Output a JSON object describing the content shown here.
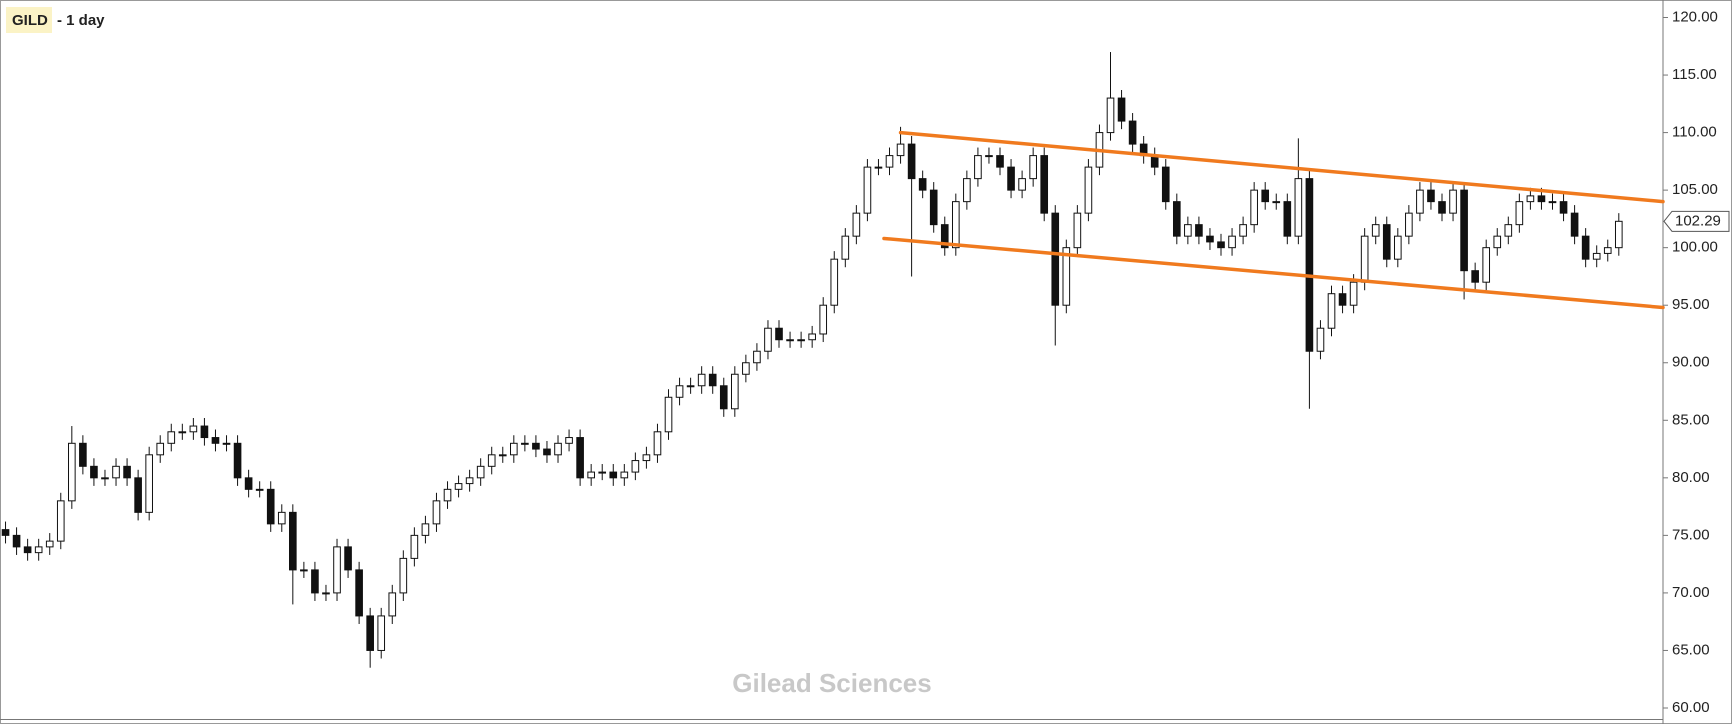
{
  "chart_data": {
    "type": "candlestick",
    "title": "GILD",
    "subtitle": "- 1 day",
    "watermark": "Gilead Sciences",
    "ylim": [
      59,
      121
    ],
    "yticks": [
      {
        "value": 60,
        "label": "60.00"
      },
      {
        "value": 65,
        "label": "65.00"
      },
      {
        "value": 70,
        "label": "70.00"
      },
      {
        "value": 75,
        "label": "75.00"
      },
      {
        "value": 80,
        "label": "80.00"
      },
      {
        "value": 85,
        "label": "85.00"
      },
      {
        "value": 90,
        "label": "90.00"
      },
      {
        "value": 95,
        "label": "95.00"
      },
      {
        "value": 100,
        "label": "100.00"
      },
      {
        "value": 105,
        "label": "105.00"
      },
      {
        "value": 110,
        "label": "110.00"
      },
      {
        "value": 115,
        "label": "115.00"
      },
      {
        "value": 120,
        "label": "120.00"
      }
    ],
    "last_price": 102.29,
    "up_color": "#ffffff",
    "down_color": "#111111",
    "open": [
      75.5,
      75,
      74,
      73.5,
      74,
      74.5,
      78,
      83,
      81,
      80,
      80,
      81,
      80,
      77,
      82,
      83,
      84,
      84,
      84.5,
      83.5,
      83,
      83,
      80,
      79,
      79,
      76,
      77,
      72,
      72,
      70,
      70,
      74,
      72,
      68,
      65,
      68,
      70,
      73,
      75,
      76,
      78,
      79,
      79.5,
      80,
      81,
      82,
      82,
      83,
      83,
      82.5,
      82,
      83,
      83.5,
      80,
      80.5,
      80.5,
      80,
      80.5,
      81.5,
      82,
      84,
      87,
      88,
      88,
      89,
      88,
      86,
      89,
      90,
      91,
      93,
      92,
      92,
      92,
      92.5,
      95,
      99,
      101,
      103,
      107,
      107,
      108,
      109,
      106,
      105,
      102,
      100,
      104,
      106,
      108,
      108,
      107,
      105,
      106,
      108,
      103,
      95,
      100,
      103,
      107,
      110,
      113,
      111,
      109,
      108,
      107,
      104,
      101,
      102,
      101,
      100.5,
      100,
      101,
      102,
      105,
      104,
      104,
      101,
      106,
      91,
      93,
      96,
      95,
      97,
      101,
      102,
      99,
      101,
      103,
      105,
      104,
      103,
      105,
      98,
      97,
      100,
      101,
      102,
      104,
      104.5,
      104,
      104,
      103,
      101,
      99,
      99.5,
      100
    ],
    "high": [
      76.2,
      75.7,
      74.7,
      74.7,
      75.2,
      78.7,
      84.5,
      83.7,
      81.7,
      80.7,
      81.7,
      81.7,
      80.7,
      82.7,
      83.7,
      84.7,
      84.7,
      85.2,
      85.2,
      84.2,
      83.7,
      83.7,
      80.7,
      79.7,
      79.7,
      77.7,
      77.7,
      72.7,
      72.7,
      70.7,
      74.7,
      74.7,
      72.7,
      68.7,
      68.7,
      70.7,
      73.7,
      75.7,
      76.7,
      78.7,
      79.7,
      80.2,
      80.7,
      81.7,
      82.7,
      82.7,
      83.7,
      83.7,
      83.7,
      83.2,
      83.7,
      84.2,
      84.2,
      81.2,
      81.2,
      81.2,
      81.2,
      82.2,
      82.7,
      84.7,
      87.7,
      88.7,
      88.7,
      89.7,
      89.7,
      88.7,
      89.7,
      90.7,
      91.7,
      93.7,
      93.7,
      92.7,
      92.7,
      93.2,
      95.7,
      99.7,
      101.7,
      103.7,
      107.7,
      107.7,
      108.7,
      110.5,
      109.7,
      106.7,
      105.7,
      102.7,
      104.7,
      106.7,
      108.7,
      108.7,
      108.7,
      107.7,
      106.7,
      108.7,
      108.7,
      103.7,
      100.7,
      103.7,
      107.7,
      110.7,
      117,
      113.7,
      111.7,
      109.7,
      108.7,
      107.7,
      104.7,
      102.7,
      102.7,
      101.7,
      101.2,
      101.7,
      102.7,
      105.7,
      105.7,
      104.7,
      104.7,
      109.5,
      106.7,
      93.7,
      96.7,
      96.7,
      97.7,
      101.7,
      102.7,
      102.7,
      101.7,
      103.7,
      105.7,
      105.7,
      104.7,
      105.7,
      105.7,
      98.7,
      100.7,
      101.7,
      102.7,
      104.7,
      105.2,
      105.2,
      104.7,
      104.7,
      103.7,
      101.7,
      100.2,
      100.7,
      103
    ],
    "low": [
      74.3,
      73.3,
      72.8,
      72.8,
      73.3,
      73.8,
      77.3,
      80.3,
      79.3,
      79.3,
      79.3,
      79.3,
      76.3,
      76.3,
      81.3,
      82.3,
      83.3,
      83.3,
      82.8,
      82.3,
      82.3,
      79.3,
      78.3,
      78.3,
      75.3,
      75.3,
      69,
      71.3,
      69.3,
      69.3,
      69.3,
      71.3,
      67.3,
      63.5,
      64.3,
      67.3,
      69.3,
      72.3,
      74.3,
      75.3,
      77.3,
      78.3,
      78.8,
      79.3,
      80.3,
      81.3,
      81.3,
      82.3,
      81.8,
      81.3,
      81.3,
      82.3,
      79.3,
      79.3,
      79.8,
      79.3,
      79.3,
      79.8,
      80.8,
      81.3,
      83.3,
      86.3,
      87.3,
      87.3,
      87.3,
      85.3,
      85.3,
      88.3,
      89.3,
      90.3,
      91.3,
      91.3,
      91.3,
      91.3,
      91.8,
      94.3,
      98.3,
      100.3,
      102.3,
      106.3,
      106.3,
      107.3,
      97.5,
      104.3,
      101.3,
      99.3,
      99.3,
      103.3,
      105.3,
      107.3,
      106.3,
      104.3,
      104.3,
      105.3,
      102.3,
      91.5,
      94.3,
      99.3,
      102.3,
      106.3,
      109.3,
      110.3,
      108.3,
      107.3,
      106.3,
      103.3,
      100.3,
      100.3,
      100.3,
      99.8,
      99.3,
      99.3,
      100.3,
      101.3,
      103.3,
      103.3,
      100.3,
      100.3,
      86,
      90.3,
      92.3,
      94.3,
      94.3,
      96.3,
      100.3,
      98.3,
      98.3,
      100.3,
      102.3,
      103.3,
      102.3,
      102.3,
      95.5,
      96.3,
      96.3,
      99.3,
      100.3,
      101.3,
      103.3,
      103.3,
      103.3,
      102.3,
      100.3,
      98.3,
      98.3,
      98.8,
      99.3
    ],
    "close": [
      75,
      74,
      73.5,
      74,
      74.5,
      78,
      83,
      81,
      80,
      80,
      81,
      80,
      77,
      82,
      83,
      84,
      84,
      84.5,
      83.5,
      83,
      83,
      80,
      79,
      79,
      76,
      77,
      72,
      72,
      70,
      70,
      74,
      72,
      68,
      65,
      68,
      70,
      73,
      75,
      76,
      78,
      79,
      79.5,
      80,
      81,
      82,
      82,
      83,
      83,
      82.5,
      82,
      83,
      83.5,
      80,
      80.5,
      80.5,
      80,
      80.5,
      81.5,
      82,
      84,
      87,
      88,
      88,
      89,
      88,
      86,
      89,
      90,
      91,
      93,
      92,
      92,
      92,
      92.5,
      95,
      99,
      101,
      103,
      107,
      107,
      108,
      109,
      106,
      105,
      102,
      100,
      104,
      106,
      108,
      108,
      107,
      105,
      106,
      108,
      103,
      95,
      100,
      103,
      107,
      110,
      113,
      111,
      109,
      108,
      107,
      104,
      101,
      102,
      101,
      100.5,
      100,
      101,
      102,
      105,
      104,
      104,
      101,
      106,
      91,
      93,
      96,
      95,
      97,
      101,
      102,
      99,
      101,
      103,
      105,
      104,
      103,
      105,
      98,
      97,
      100,
      101,
      102,
      104,
      104.5,
      104,
      104,
      103,
      101,
      99,
      99.5,
      100,
      102.29
    ],
    "trendlines": [
      {
        "color": "#f07a1e",
        "x": [
          81,
          150
        ],
        "y": [
          110,
          104
        ]
      },
      {
        "color": "#f07a1e",
        "x": [
          79.5,
          150
        ],
        "y": [
          100.8,
          94.8
        ]
      }
    ]
  }
}
